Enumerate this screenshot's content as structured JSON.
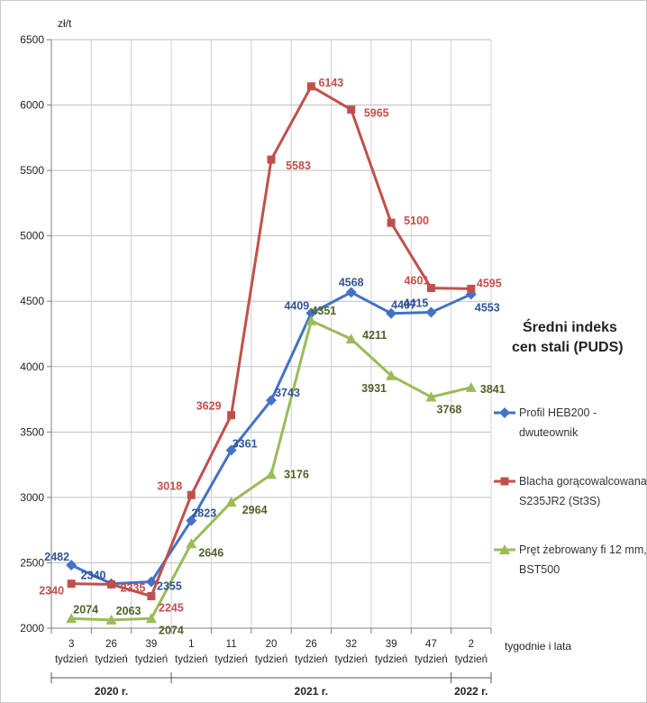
{
  "chart_data": {
    "type": "line",
    "title": "Średni indeks cen stali (PUDS)",
    "title_lines": [
      "Średni indeks",
      "cen stali (PUDS)"
    ],
    "ylabel": "zł/t",
    "xlabel": "tygodnie i lata",
    "ylim": [
      2000,
      6500
    ],
    "yticks": [
      2000,
      2500,
      3000,
      3500,
      4000,
      4500,
      5000,
      5500,
      6000,
      6500
    ],
    "grid": true,
    "legend_position": "right",
    "categories": [
      {
        "week": "3",
        "unit": "tydzień"
      },
      {
        "week": "26",
        "unit": "tydzień"
      },
      {
        "week": "39",
        "unit": "tydzień"
      },
      {
        "week": "1",
        "unit": "tydzień"
      },
      {
        "week": "11",
        "unit": "tydzień"
      },
      {
        "week": "20",
        "unit": "tydzień"
      },
      {
        "week": "26",
        "unit": "tydzień"
      },
      {
        "week": "32",
        "unit": "tydzień"
      },
      {
        "week": "39",
        "unit": "tydzień"
      },
      {
        "week": "47",
        "unit": "tydzień"
      },
      {
        "week": "2",
        "unit": "tydzień"
      }
    ],
    "year_groups": [
      {
        "label": "2020 r.",
        "from": 0,
        "to": 2
      },
      {
        "label": "2021 r.",
        "from": 3,
        "to": 9
      },
      {
        "label": "2022 r.",
        "from": 10,
        "to": 10
      }
    ],
    "series": [
      {
        "name_lines": [
          "Profil HEB200 -",
          "dwuteownik"
        ],
        "color": "#4472c4",
        "label_color": "#2f5597",
        "marker": "diamond",
        "values": [
          2482,
          2340,
          2355,
          2823,
          3361,
          3743,
          4409,
          4568,
          4407,
          4415,
          4553
        ]
      },
      {
        "name_lines": [
          "Blacha gorącowalcowana",
          "S235JR2 (St3S)"
        ],
        "color": "#c0504d",
        "label_color": "#c0504d",
        "marker": "square",
        "values": [
          2340,
          2335,
          2245,
          3018,
          3629,
          5583,
          6143,
          5965,
          5100,
          4601,
          4595
        ]
      },
      {
        "name_lines": [
          "Pręt żebrowany fi 12 mm,",
          "BST500"
        ],
        "color": "#9bbb59",
        "label_color": "#4f6228",
        "marker": "triangle",
        "values": [
          2074,
          2063,
          2074,
          2646,
          2964,
          3176,
          4351,
          4211,
          3931,
          3768,
          3841
        ]
      }
    ]
  }
}
